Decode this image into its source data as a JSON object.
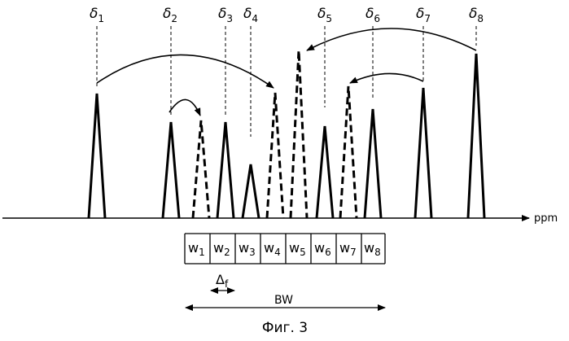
{
  "figure": {
    "deltas": [
      {
        "base": "δ",
        "sub": "1"
      },
      {
        "base": "δ",
        "sub": "2"
      },
      {
        "base": "δ",
        "sub": "3"
      },
      {
        "base": "δ",
        "sub": "4"
      },
      {
        "base": "δ",
        "sub": "5"
      },
      {
        "base": "δ",
        "sub": "6"
      },
      {
        "base": "δ",
        "sub": "7"
      },
      {
        "base": "δ",
        "sub": "8"
      }
    ],
    "windows": [
      {
        "base": "w",
        "sub": "1"
      },
      {
        "base": "w",
        "sub": "2"
      },
      {
        "base": "w",
        "sub": "3"
      },
      {
        "base": "w",
        "sub": "4"
      },
      {
        "base": "w",
        "sub": "5"
      },
      {
        "base": "w",
        "sub": "6"
      },
      {
        "base": "w",
        "sub": "7"
      },
      {
        "base": "w",
        "sub": "8"
      }
    ],
    "axis_label": "ppm",
    "delta_f": {
      "base": "Δ",
      "sub": "f"
    },
    "bw_label": "BW",
    "caption": "Фиг. 3"
  }
}
